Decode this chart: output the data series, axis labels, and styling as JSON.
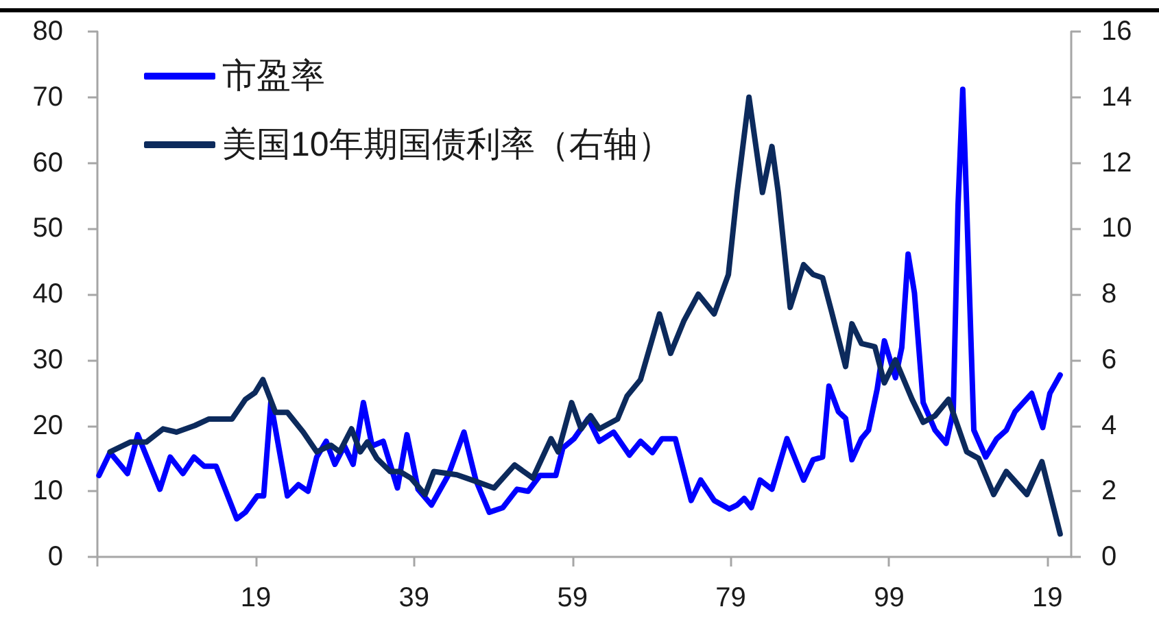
{
  "chart_data": {
    "type": "line",
    "legend": "top left",
    "marker": "none",
    "line_style": "solid",
    "grid": false,
    "xlim": [
      1899,
      2022
    ],
    "xticks": [
      {
        "value": 1899,
        "label": null
      },
      {
        "value": 1919,
        "label": "19"
      },
      {
        "value": 1939,
        "label": "39"
      },
      {
        "value": 1959,
        "label": "59"
      },
      {
        "value": 1979,
        "label": "79"
      },
      {
        "value": 1999,
        "label": "99"
      },
      {
        "value": 2019,
        "label": "19"
      }
    ],
    "ylim": [
      0,
      80
    ],
    "yticks": [
      0,
      10,
      20,
      30,
      40,
      50,
      60,
      70,
      80
    ],
    "y2lim": [
      0,
      16
    ],
    "y2ticks": [
      0,
      2,
      4,
      6,
      8,
      10,
      12,
      14,
      16
    ],
    "series": [
      {
        "name": "市盈率",
        "color": "#0000ff",
        "x": [
          1899.2,
          1900.6,
          1902.8,
          1904.1,
          1906.9,
          1908.2,
          1909.8,
          1911.2,
          1912.5,
          1914.0,
          1916.6,
          1917.7,
          1919.2,
          1920.0,
          1920.9,
          1923.0,
          1924.4,
          1925.6,
          1926.7,
          1927.9,
          1929.0,
          1930.2,
          1931.3,
          1932.6,
          1933.7,
          1935.1,
          1936.9,
          1938.1,
          1939.5,
          1941.2,
          1943.3,
          1945.3,
          1946.8,
          1948.5,
          1950.2,
          1952.0,
          1953.4,
          1954.9,
          1956.9,
          1957.8,
          1959.2,
          1961.0,
          1962.4,
          1964.2,
          1966.2,
          1967.6,
          1969.1,
          1970.3,
          1972.0,
          1974.0,
          1975.2,
          1976.9,
          1978.8,
          1979.8,
          1980.7,
          1981.6,
          1982.7,
          1984.2,
          1986.1,
          1988.2,
          1989.4,
          1990.6,
          1991.4,
          1992.6,
          1993.5,
          1994.3,
          1995.5,
          1996.4,
          1997.5,
          1998.4,
          1999.8,
          2000.6,
          2001.4,
          2002.2,
          2003.3,
          2004.8,
          2006.2,
          2007.1,
          2007.7,
          2008.3,
          2008.8,
          2009.7,
          2011.2,
          2012.6,
          2013.8,
          2014.9,
          2017.0,
          2018.4,
          2019.3,
          2020.6
        ],
        "values": [
          12.4,
          15.9,
          12.7,
          18.6,
          10.3,
          15.2,
          12.7,
          15.2,
          13.8,
          13.8,
          5.8,
          6.8,
          9.3,
          9.3,
          23.5,
          9.3,
          11.0,
          10.0,
          15.2,
          17.6,
          14.1,
          16.9,
          14.1,
          23.5,
          16.9,
          17.6,
          10.5,
          18.6,
          10.3,
          7.9,
          12.4,
          19.0,
          11.7,
          6.8,
          7.5,
          10.3,
          10.0,
          12.4,
          12.4,
          16.6,
          18.0,
          21.1,
          17.6,
          19.0,
          15.5,
          17.6,
          15.9,
          18.0,
          18.0,
          8.6,
          11.7,
          8.6,
          7.3,
          7.9,
          8.9,
          7.5,
          11.7,
          10.3,
          18.0,
          11.7,
          14.8,
          15.2,
          26.0,
          22.1,
          21.1,
          14.8,
          18.0,
          19.3,
          25.6,
          32.9,
          27.3,
          31.9,
          46.1,
          40.2,
          23.5,
          19.3,
          17.3,
          22.1,
          53.4,
          71.2,
          53.4,
          19.3,
          15.2,
          18.0,
          19.3,
          22.1,
          24.9,
          19.7,
          24.9,
          27.7
        ]
      },
      {
        "name": "美国10年期国债利率（右轴）",
        "color": "#0c2a5c",
        "axis": "y2",
        "x": [
          1900.6,
          1903.2,
          1905.2,
          1907.3,
          1909.0,
          1911.3,
          1913.1,
          1916.0,
          1917.7,
          1918.9,
          1919.9,
          1921.5,
          1923.0,
          1925.0,
          1926.7,
          1928.5,
          1929.6,
          1931.1,
          1932.2,
          1933.1,
          1934.3,
          1936.0,
          1937.2,
          1938.6,
          1940.4,
          1941.5,
          1944.4,
          1946.8,
          1949.1,
          1951.7,
          1954.0,
          1956.3,
          1957.2,
          1958.9,
          1960.1,
          1961.3,
          1962.4,
          1964.7,
          1965.9,
          1967.6,
          1970.0,
          1971.4,
          1973.1,
          1974.9,
          1976.9,
          1978.7,
          1979.8,
          1981.3,
          1983.0,
          1984.2,
          1985.0,
          1986.5,
          1988.2,
          1989.4,
          1990.6,
          1991.7,
          1993.5,
          1994.3,
          1995.5,
          1997.2,
          1998.4,
          1999.8,
          2001.9,
          2003.3,
          2004.8,
          2006.5,
          2008.8,
          2010.3,
          2012.2,
          2013.8,
          2016.4,
          2018.3,
          2020.6
        ],
        "values": [
          3.2,
          3.5,
          3.5,
          3.9,
          3.8,
          4.0,
          4.2,
          4.2,
          4.8,
          5.0,
          5.4,
          4.4,
          4.4,
          3.8,
          3.2,
          3.4,
          3.2,
          3.9,
          3.2,
          3.5,
          3.0,
          2.6,
          2.6,
          2.4,
          1.9,
          2.6,
          2.5,
          2.3,
          2.1,
          2.8,
          2.4,
          3.6,
          3.2,
          4.7,
          3.9,
          4.3,
          3.9,
          4.2,
          4.9,
          5.4,
          7.4,
          6.2,
          7.2,
          8.0,
          7.4,
          8.6,
          11.1,
          14.0,
          11.1,
          12.5,
          11.1,
          7.6,
          8.9,
          8.6,
          8.5,
          7.5,
          5.8,
          7.1,
          6.5,
          6.4,
          5.3,
          6.0,
          4.8,
          4.1,
          4.3,
          4.8,
          3.2,
          3.0,
          1.9,
          2.6,
          1.9,
          2.9,
          0.7
        ]
      }
    ]
  }
}
